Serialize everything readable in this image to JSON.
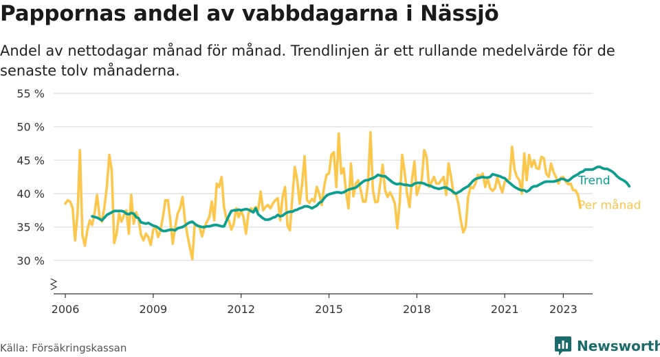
{
  "title": "Pappornas andel av vabbdagarna i Nässjö",
  "subtitle": "Andel av nettodagar månad för månad. Trendlinjen är ett rullande medelvärde för de senaste tolv månaderna.",
  "source": "Källa: Försäkringskassan",
  "brand": "Newsworthy",
  "colors": {
    "trend": "#0c9e8e",
    "monthly": "#fcc74d",
    "brand": "#1b6b6b"
  },
  "chart_data": {
    "type": "line",
    "ylim": [
      25,
      55
    ],
    "xlim": [
      2005.6,
      2024.0
    ],
    "yticks": [
      30,
      35,
      40,
      45,
      50,
      55
    ],
    "ytick_labels": [
      "30 %",
      "35 %",
      "40 %",
      "45 %",
      "50 %",
      "55 %"
    ],
    "xticks": [
      2006,
      2009,
      2012,
      2015,
      2018,
      2021,
      2023
    ],
    "xtick_labels": [
      "2006",
      "2009",
      "2012",
      "2015",
      "2018",
      "2021",
      "2023"
    ],
    "y_axis_break": true,
    "grid": "horizontal",
    "series": [
      {
        "name": "Per månad",
        "label": "Per månad",
        "start": 2006.0,
        "step_months": 1,
        "values": [
          38.5,
          39,
          38.8,
          37.8,
          33,
          37,
          46.5,
          33.8,
          32.2,
          34.5,
          36,
          35.3,
          37.2,
          39.8,
          36.5,
          35.8,
          38,
          41,
          45.8,
          43.5,
          32.6,
          34,
          37,
          35.8,
          36.8,
          37.5,
          34,
          39.8,
          35.5,
          37.2,
          36.2,
          33.8,
          33,
          34,
          33.5,
          32.3,
          34.6,
          35,
          33.5,
          34.5,
          36.6,
          39,
          39,
          36,
          32.5,
          35,
          37,
          37.8,
          39.5,
          36,
          33.8,
          32,
          30.2,
          35.3,
          35.3,
          35,
          33.6,
          35,
          35.8,
          36.5,
          38.8,
          36,
          41.5,
          41,
          42.5,
          38,
          36.2,
          36,
          34.6,
          35.5,
          37.8,
          36.5,
          37.4,
          36.5,
          34,
          37,
          37.8,
          37.5,
          38,
          37.5,
          40.3,
          37.5,
          38,
          38.3,
          37.8,
          38.5,
          39,
          39.3,
          36,
          39.5,
          41,
          35.2,
          34.5,
          39.5,
          44,
          42,
          38.5,
          41.5,
          45.6,
          39,
          38.6,
          39.2,
          38.8,
          41,
          40,
          38.3,
          41,
          42.8,
          43,
          45.8,
          46.2,
          41,
          49,
          43,
          43.8,
          40.2,
          37.8,
          44.5,
          39.6,
          41.5,
          42,
          40.5,
          38.8,
          38.8,
          41.5,
          49.2,
          40.5,
          38.7,
          38.8,
          41.5,
          44.3,
          40.5,
          39.5,
          40.2,
          39.5,
          38.5,
          34.8,
          38.8,
          45.8,
          43.2,
          40,
          38,
          42,
          44.8,
          39.8,
          41,
          42,
          46.5,
          45.5,
          41,
          41.7,
          42.5,
          41.5,
          41.5,
          42,
          42.5,
          39.8,
          44.5,
          42.5,
          40,
          40,
          38.5,
          36,
          34.2,
          35,
          39.5,
          41,
          40.8,
          41.5,
          42.8,
          42.6,
          43,
          41,
          42.3,
          40.8,
          40.4,
          40.8,
          42.5,
          41.2,
          40.2,
          41.8,
          42,
          42.2,
          47,
          43.6,
          42.5,
          42,
          40,
          46,
          42,
          45.8,
          44,
          45,
          43.8,
          43.7,
          45.5,
          45.3,
          43,
          42.5,
          44.5,
          43.2,
          42.5,
          41.5,
          42.4,
          42.5,
          41.8,
          41.4,
          41.5,
          40.5,
          40.5,
          39.8,
          37.9
        ]
      },
      {
        "name": "Trend",
        "label": "Trend",
        "start": 2006.917,
        "step_months": 1,
        "values": [
          36.6,
          36.5,
          36.4,
          36.2,
          36,
          36.4,
          36.8,
          37,
          37.2,
          37.4,
          37.4,
          37.4,
          37.4,
          37.3,
          37,
          36.9,
          37.1,
          37,
          36.5,
          36.3,
          35.7,
          35.6,
          35.5,
          35.6,
          35.4,
          35.2,
          35.1,
          34.9,
          34.6,
          34.4,
          34.4,
          34.5,
          34.6,
          34.6,
          34.5,
          34.8,
          34.9,
          35,
          35.2,
          35.5,
          35.7,
          35.8,
          35.5,
          35.2,
          35.1,
          35,
          35,
          35.1,
          35.1,
          35.2,
          35.3,
          35.3,
          35.2,
          35.1,
          35.1,
          35.9,
          36.7,
          37.4,
          37.5,
          37.5,
          37.6,
          37.5,
          37.6,
          37.7,
          37.6,
          37.4,
          37.2,
          37.8,
          36.9,
          36.6,
          36.3,
          36.1,
          36.1,
          36.2,
          36.4,
          36.5,
          36.8,
          36.6,
          36.7,
          37,
          37.2,
          37.3,
          37.3,
          37.5,
          37.6,
          37.8,
          37.9,
          38.1,
          38.1,
          38,
          37.8,
          38,
          38.2,
          38.6,
          38.8,
          39.3,
          39.7,
          39.9,
          40,
          40.1,
          40.2,
          40.2,
          40.1,
          40.2,
          40.4,
          40.6,
          40.7,
          40.8,
          40.9,
          41.2,
          41.5,
          41.8,
          42,
          42,
          42.2,
          42.3,
          42.5,
          42.8,
          42.7,
          42.6,
          42.6,
          42.3,
          42,
          41.7,
          41.5,
          41.4,
          41.5,
          41.4,
          41.3,
          41.3,
          41.2,
          41.2,
          41.5,
          41.6,
          41.6,
          41.6,
          41.5,
          41.3,
          41.2,
          41.1,
          40.9,
          40.8,
          40.7,
          40.8,
          40.9,
          40.9,
          40.7,
          40.5,
          40.2,
          40,
          40.2,
          40.4,
          40.7,
          40.9,
          41.1,
          41.5,
          41.9,
          42.2,
          42.3,
          42.4,
          42.5,
          42.4,
          42.4,
          42.5,
          42.9,
          42.8,
          42.7,
          42.6,
          42.4,
          42.3,
          41.9,
          41.6,
          41.3,
          41,
          40.8,
          40.6,
          40.5,
          40.5,
          40.3,
          40.5,
          40.9,
          41.1,
          41.1,
          41.3,
          41.5,
          41.7,
          41.8,
          41.8,
          41.8,
          41.8,
          41.9,
          42,
          42.2,
          42.2,
          42,
          41.9,
          42.2,
          42.5,
          42.7,
          42.9,
          43.2,
          43.3,
          43.6,
          43.6,
          43.6,
          43.6,
          43.8,
          44,
          44,
          43.8,
          43.7,
          43.7,
          43.5,
          43.3,
          43,
          42.6,
          42.3,
          42.1,
          41.9,
          41.6,
          41.1
        ]
      }
    ]
  }
}
